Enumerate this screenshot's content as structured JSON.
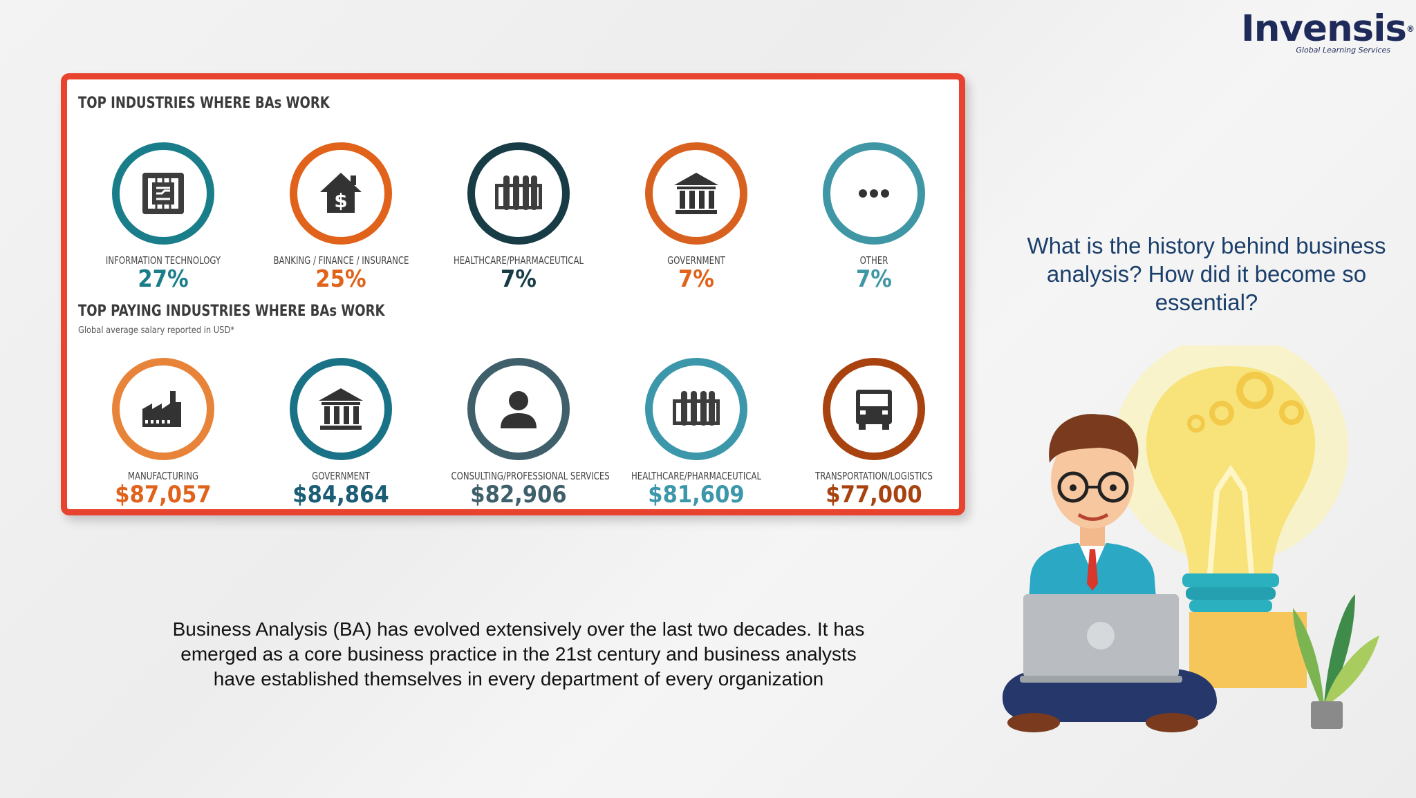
{
  "brand": {
    "name": "Invensis",
    "tagline": "Global Learning Services",
    "reg": "®"
  },
  "infographic": {
    "section1": {
      "title": "TOP INDUSTRIES WHERE BAs WORK",
      "items": [
        {
          "label": "INFORMATION TECHNOLOGY",
          "value": "27%",
          "icon": "circuit-icon",
          "ring": "#1a7e8a",
          "value_color": "#1a7e8a"
        },
        {
          "label": "BANKING / FINANCE / INSURANCE",
          "value": "25%",
          "icon": "house-dollar-icon",
          "ring": "#e0621b",
          "value_color": "#e0621b"
        },
        {
          "label": "HEALTHCARE/PHARMACEUTICAL",
          "value": "7%",
          "icon": "test-tubes-icon",
          "ring": "#173c46",
          "value_color": "#173c46"
        },
        {
          "label": "GOVERNMENT",
          "value": "7%",
          "icon": "building-columns-icon",
          "ring": "#d9611f",
          "value_color": "#e0621b"
        },
        {
          "label": "OTHER",
          "value": "7%",
          "icon": "ellipsis-icon",
          "ring": "#3f97a6",
          "value_color": "#3f97a6"
        }
      ]
    },
    "section2": {
      "title": "TOP PAYING INDUSTRIES WHERE BAs WORK",
      "subtitle": "Global average salary reported in USD*",
      "items": [
        {
          "label": "MANUFACTURING",
          "value": "$87,057",
          "icon": "factory-icon",
          "ring": "#e8843a",
          "value_color": "#e0621b"
        },
        {
          "label": "GOVERNMENT",
          "value": "$84,864",
          "icon": "building-columns-icon",
          "ring": "#1a7287",
          "value_color": "#1a5d75"
        },
        {
          "label": "CONSULTING/PROFESSIONAL SERVICES",
          "value": "$82,906",
          "icon": "person-icon",
          "ring": "#3f5f6b",
          "value_color": "#3f5f6b"
        },
        {
          "label": "HEALTHCARE/PHARMACEUTICAL",
          "value": "$81,609",
          "icon": "test-tubes-icon",
          "ring": "#3c97ab",
          "value_color": "#3c97ab"
        },
        {
          "label": "TRANSPORTATION/LOGISTICS",
          "value": "$77,000",
          "icon": "truck-icon",
          "ring": "#a8420f",
          "value_color": "#a8420f"
        }
      ]
    }
  },
  "question": "What is the history behind business analysis? How did it become so essential?",
  "body": "Business Analysis (BA) has evolved extensively over the last two decades. It has emerged as a core business practice in the 21st century and business analysts have established themselves in every department of every organization",
  "colors": {
    "card_border": "#e8432e",
    "question_text": "#1b3f6b",
    "brand": "#1e2a5a"
  }
}
